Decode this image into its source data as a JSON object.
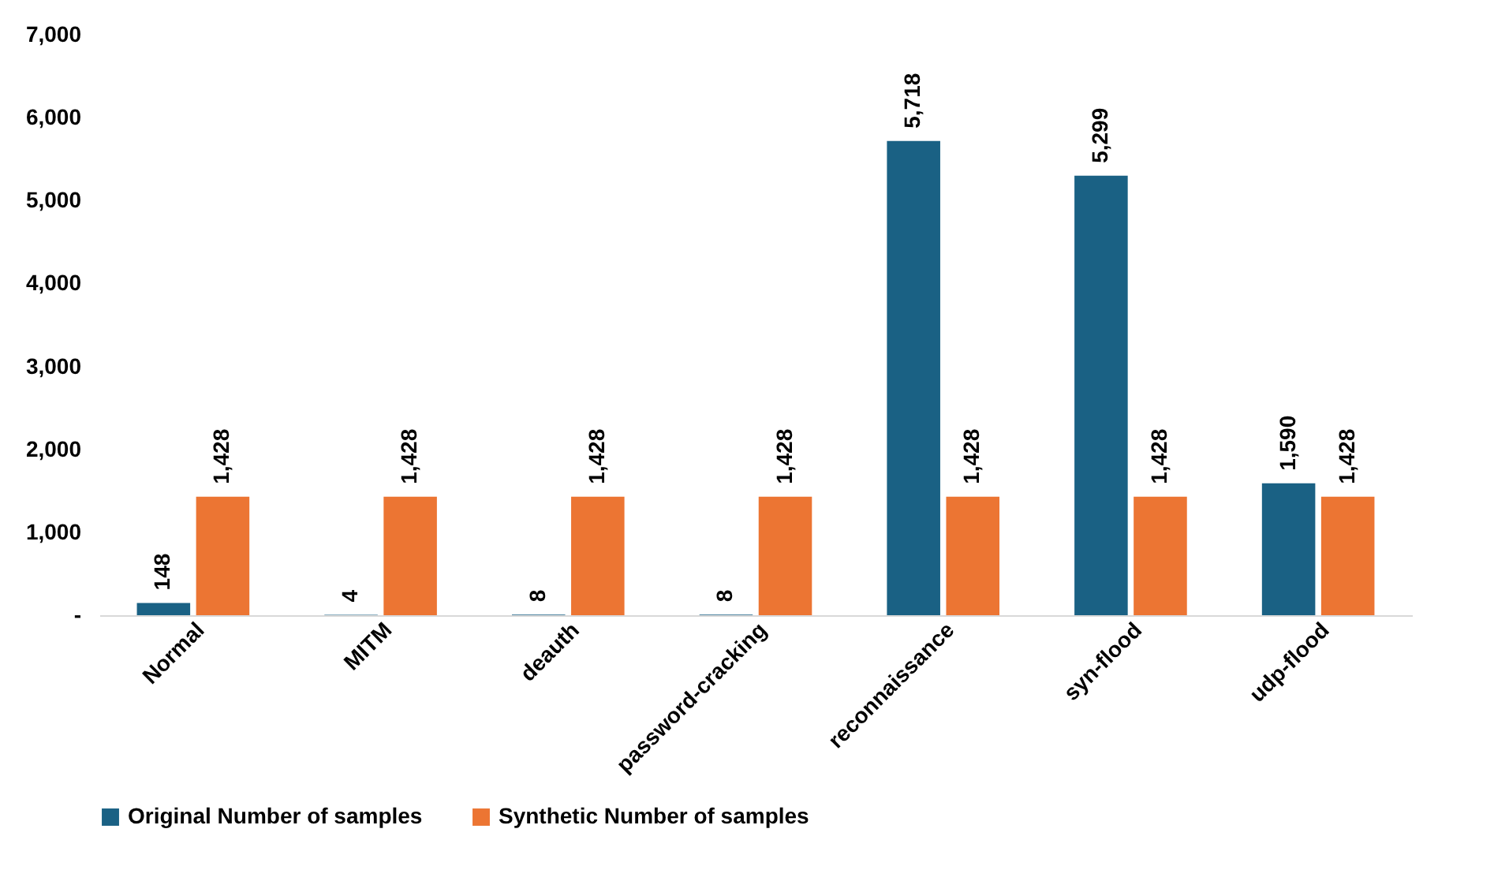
{
  "chart_data": {
    "type": "bar",
    "categories": [
      "Normal",
      "MITM",
      "deauth",
      "password-cracking",
      "reconnaissance",
      "syn-flood",
      "udp-flood"
    ],
    "series": [
      {
        "name": "Original Number of samples",
        "color": "#1a6184",
        "values": [
          148,
          4,
          8,
          8,
          5718,
          5299,
          1590
        ],
        "value_labels": [
          "148",
          "4",
          "8",
          "8",
          "5,718",
          "5,299",
          "1,590"
        ]
      },
      {
        "name": "Synthetic Number of samples",
        "color": "#ec7533",
        "values": [
          1428,
          1428,
          1428,
          1428,
          1428,
          1428,
          1428
        ],
        "value_labels": [
          "1,428",
          "1,428",
          "1,428",
          "1,428",
          "1,428",
          "1,428",
          "1,428"
        ]
      }
    ],
    "ylim": [
      0,
      7000
    ],
    "yticks": [
      {
        "value": 0,
        "label": "-"
      },
      {
        "value": 1000,
        "label": "1,000"
      },
      {
        "value": 2000,
        "label": "2,000"
      },
      {
        "value": 3000,
        "label": "3,000"
      },
      {
        "value": 4000,
        "label": "4,000"
      },
      {
        "value": 5000,
        "label": "5,000"
      },
      {
        "value": 6000,
        "label": "6,000"
      },
      {
        "value": 7000,
        "label": "7,000"
      }
    ],
    "grid": false,
    "legend": "bottom"
  }
}
